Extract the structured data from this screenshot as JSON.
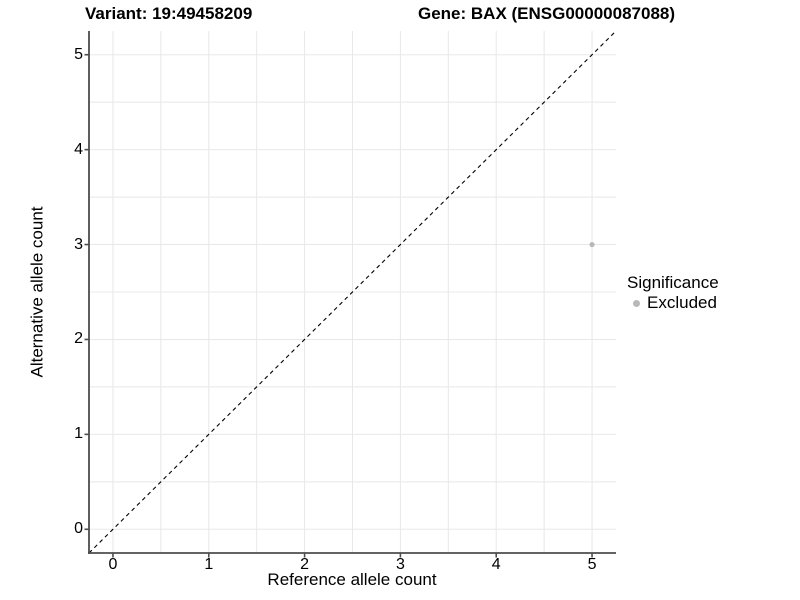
{
  "header": {
    "variant_title": "Variant: 19:49458209",
    "gene_title": "Gene: BAX (ENSG00000087088)"
  },
  "axes": {
    "x": {
      "label": "Reference allele count",
      "ticks": [
        0,
        1,
        2,
        3,
        4,
        5
      ]
    },
    "y": {
      "label": "Alternative allele count",
      "ticks": [
        0,
        1,
        2,
        3,
        4,
        5
      ]
    }
  },
  "legend": {
    "title": "Significance",
    "items": [
      {
        "label": "Excluded",
        "color": "#b8b8b8"
      }
    ]
  },
  "colors": {
    "axis_line": "#4d4d4d",
    "grid": "#e8e8e8",
    "reference_line": "#000000",
    "point": "#b8b8b8",
    "text": "#000000",
    "background": "#ffffff"
  },
  "chart_data": {
    "type": "scatter",
    "title": "Variant: 19:49458209 | Gene: BAX (ENSG00000087088)",
    "xlabel": "Reference allele count",
    "ylabel": "Alternative allele count",
    "xlim": [
      -0.25,
      5.25
    ],
    "ylim": [
      -0.25,
      5.25
    ],
    "x_ticks": [
      0,
      1,
      2,
      3,
      4,
      5
    ],
    "y_ticks": [
      0,
      1,
      2,
      3,
      4,
      5
    ],
    "grid": true,
    "grid_interval": 0.5,
    "legend_position": "right",
    "series": [
      {
        "name": "Excluded",
        "color": "#b8b8b8",
        "points": [
          {
            "x": 5,
            "y": 3
          }
        ]
      }
    ],
    "reference_line": {
      "equation": "y = x",
      "style": "dashed",
      "color": "#000000"
    }
  }
}
